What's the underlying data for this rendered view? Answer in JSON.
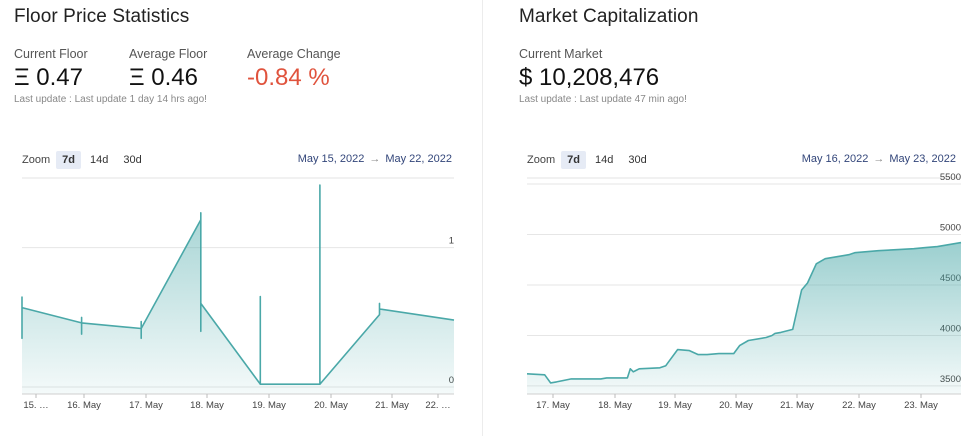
{
  "floor": {
    "title": "Floor Price Statistics",
    "stats": [
      {
        "label": "Current Floor",
        "value": "Ξ 0.47"
      },
      {
        "label": "Average Floor",
        "value": "Ξ 0.46"
      },
      {
        "label": "Average Change",
        "value": "-0.84 %"
      }
    ],
    "last_update": "Last update : Last update 1 day 14 hrs ago!",
    "zoom": {
      "label": "Zoom",
      "options": [
        "7d",
        "14d",
        "30d"
      ],
      "active": "7d"
    },
    "range": {
      "from": "May 15, 2022",
      "to": "May 22, 2022",
      "arrow": "→"
    }
  },
  "market": {
    "title": "Market Capitalization",
    "stats": [
      {
        "label": "Current Market",
        "value": "$ 10,208,476"
      }
    ],
    "last_update": "Last update : Last update 47 min ago!",
    "zoom": {
      "label": "Zoom",
      "options": [
        "7d",
        "14d",
        "30d"
      ],
      "active": "7d"
    },
    "range": {
      "from": "May 16, 2022",
      "to": "May 23, 2022",
      "arrow": "→"
    }
  },
  "colors": {
    "accent": "#4aa8a8",
    "negative": "#e0533d",
    "range_text": "#33467a"
  },
  "chart_data": [
    {
      "type": "area",
      "x_tick_labels": [
        "15. …",
        "16. May",
        "17. May",
        "18. May",
        "19. May",
        "20. May",
        "21. May",
        "22. …"
      ],
      "y_tick_labels": [
        "0",
        "1"
      ],
      "ylim": [
        -0.05,
        1.5
      ],
      "xlim": [
        15.0,
        22.25
      ],
      "grid": true,
      "x": [
        15.0,
        15.0,
        15.0,
        16.0,
        16.0,
        16.0,
        16.0,
        17.0,
        17.0,
        17.0,
        17.0,
        18.0,
        18.0,
        18.0,
        18.0,
        18.0,
        19.0,
        19.0,
        19.0,
        19.0,
        20.0,
        20.0,
        20.0,
        20.0,
        21.0,
        21.0,
        21.0,
        22.25
      ],
      "y": [
        0.65,
        0.35,
        0.57,
        0.46,
        0.38,
        0.5,
        0.46,
        0.42,
        0.35,
        0.47,
        0.42,
        1.2,
        1.25,
        0.4,
        0.6,
        0.6,
        0.02,
        0.65,
        0.02,
        0.02,
        0.02,
        1.45,
        0.02,
        0.02,
        0.52,
        0.6,
        0.56,
        0.48
      ]
    },
    {
      "type": "area",
      "x_tick_labels": [
        "17. May",
        "18. May",
        "19. May",
        "20. May",
        "21. May",
        "22. May",
        "23. May"
      ],
      "y_tick_labels": [
        "3500",
        "4000",
        "4500",
        "5000",
        "5500"
      ],
      "ylim": [
        3420,
        5560
      ],
      "xlim": [
        16.25,
        23.6
      ],
      "grid": true,
      "x": [
        16.25,
        16.55,
        16.65,
        16.75,
        17.0,
        17.5,
        17.6,
        17.95,
        18.0,
        18.05,
        18.15,
        18.5,
        18.6,
        18.65,
        18.8,
        19.0,
        19.15,
        19.3,
        19.5,
        19.75,
        19.85,
        20.0,
        20.3,
        20.4,
        20.45,
        20.55,
        20.75,
        20.9,
        21.0,
        21.15,
        21.3,
        21.5,
        21.7,
        21.8,
        22.0,
        22.2,
        22.5,
        22.8,
        23.0,
        23.2,
        23.4,
        23.6
      ],
      "y": [
        3620,
        3610,
        3530,
        3540,
        3570,
        3570,
        3580,
        3580,
        3670,
        3640,
        3670,
        3680,
        3700,
        3740,
        3860,
        3850,
        3810,
        3810,
        3820,
        3820,
        3900,
        3950,
        3980,
        4000,
        4020,
        4030,
        4060,
        4450,
        4520,
        4710,
        4760,
        4780,
        4800,
        4820,
        4830,
        4840,
        4850,
        4860,
        4870,
        4880,
        4900,
        4920
      ]
    }
  ]
}
